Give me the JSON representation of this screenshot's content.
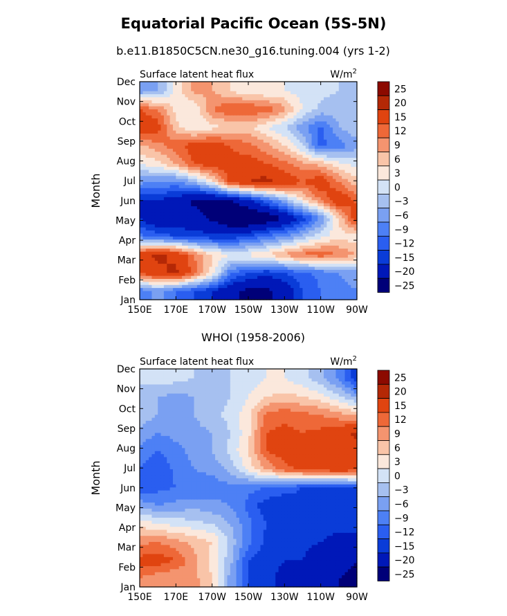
{
  "page": {
    "title": "Equatorial Pacific Ocean (5S-5N)"
  },
  "chart_data": [
    {
      "type": "heatmap",
      "subtitle": "b.e11.B1850C5CN.ne30_g16.tuning.004 (yrs 1-2)",
      "panel_label": "Surface latent heat flux",
      "units_label": "W/m",
      "units_exponent": "2",
      "xlabel": "",
      "ylabel": "Month",
      "x_ticks": [
        "150E",
        "170E",
        "170W",
        "150W",
        "130W",
        "110W",
        "90W"
      ],
      "y_ticks": [
        "Jan",
        "Feb",
        "Mar",
        "Apr",
        "May",
        "Jun",
        "Jul",
        "Aug",
        "Sep",
        "Oct",
        "Nov",
        "Dec"
      ],
      "colorbar_levels": [
        "25",
        "20",
        "15",
        "12",
        "9",
        "6",
        "3",
        "0",
        "−3",
        "−6",
        "−9",
        "−12",
        "−15",
        "−20",
        "−25"
      ],
      "grid": [
        [
          -9,
          -5,
          -9,
          -12,
          -15,
          -19,
          -21,
          -21,
          -18,
          -12,
          -9,
          -7,
          -6
        ],
        [
          16,
          19,
          21,
          14,
          5,
          -8,
          -12,
          -14,
          -12,
          -10,
          -8,
          -6,
          -5
        ],
        [
          18,
          21,
          19,
          12,
          6,
          3,
          4,
          6,
          10,
          13,
          14,
          12,
          9
        ],
        [
          -8,
          -10,
          -12,
          -13,
          -14,
          -14,
          -12,
          -9,
          -6,
          -2,
          2,
          5,
          4
        ],
        [
          -15,
          -20,
          -19,
          -18,
          -21,
          -25,
          -26,
          -24,
          -20,
          -14,
          -6,
          6,
          18
        ],
        [
          -15,
          -15,
          -17,
          -21,
          -22,
          -20,
          -16,
          -10,
          -3,
          5,
          12,
          19,
          14
        ],
        [
          -5,
          -6,
          -7,
          -3,
          4,
          16,
          20,
          22,
          18,
          15,
          18,
          12,
          7
        ],
        [
          3,
          5,
          9,
          15,
          18,
          16,
          17,
          15,
          13,
          10,
          8,
          4,
          2
        ],
        [
          8,
          11,
          14,
          17,
          18,
          15,
          13,
          10,
          6,
          0,
          -10,
          -8,
          -4
        ],
        [
          20,
          17,
          7,
          3,
          5,
          6,
          7,
          3,
          0,
          -5,
          -10,
          -3,
          -1
        ],
        [
          15,
          12,
          5,
          3,
          12,
          15,
          15,
          14,
          10,
          3,
          -1,
          -2,
          -2
        ],
        [
          -5,
          -3,
          4,
          10,
          9,
          6,
          4,
          3,
          3,
          2,
          1,
          0,
          -3
        ]
      ]
    },
    {
      "type": "heatmap",
      "subtitle": "WHOI (1958-2006)",
      "panel_label": "Surface latent heat flux",
      "units_label": "W/m",
      "units_exponent": "2",
      "xlabel": "",
      "ylabel": "Month",
      "x_ticks": [
        "150E",
        "170E",
        "170W",
        "150W",
        "130W",
        "110W",
        "90W"
      ],
      "y_ticks": [
        "Jan",
        "Feb",
        "Mar",
        "Apr",
        "May",
        "Jun",
        "Jul",
        "Aug",
        "Sep",
        "Oct",
        "Nov",
        "Dec"
      ],
      "colorbar_levels": [
        "25",
        "20",
        "15",
        "12",
        "9",
        "6",
        "3",
        "0",
        "−3",
        "−6",
        "−9",
        "−12",
        "−15",
        "−20",
        "−25"
      ],
      "grid": [
        [
          12,
          10,
          9,
          10,
          6,
          -4,
          -12,
          -14,
          -16,
          -18,
          -20,
          -20,
          -22
        ],
        [
          16,
          17,
          15,
          10,
          5,
          -2,
          -12,
          -14,
          -15,
          -15,
          -18,
          -18,
          -20
        ],
        [
          11,
          12,
          10,
          8,
          6,
          -1,
          -8,
          -13,
          -14,
          -14,
          -15,
          -16,
          -16
        ],
        [
          5,
          3,
          2,
          1,
          0,
          -3,
          -8,
          -12,
          -13,
          -13,
          -14,
          -14,
          -14
        ],
        [
          -4,
          -6,
          -5,
          -4,
          -5,
          -6,
          -10,
          -14,
          -15,
          -14,
          -15,
          -15,
          -15
        ],
        [
          -11,
          -10,
          -9,
          -9,
          -8,
          -7,
          -8,
          -9,
          -10,
          -12,
          -13,
          -13,
          -12
        ],
        [
          -9,
          -12,
          -8,
          -6,
          -5,
          -2,
          4,
          9,
          14,
          16,
          17,
          18,
          17
        ],
        [
          -7,
          -9,
          -7,
          -5,
          -3,
          1,
          6,
          15,
          17,
          16,
          16,
          18,
          18
        ],
        [
          -4,
          -6,
          -5,
          -4,
          -3,
          0,
          5,
          15,
          16,
          15,
          16,
          18,
          21
        ],
        [
          -1,
          -3,
          -5,
          -3,
          -1,
          1,
          5,
          13,
          14,
          13,
          12,
          10,
          8
        ],
        [
          -3,
          -3,
          -4,
          -3,
          -2,
          0,
          3,
          6,
          7,
          6,
          4,
          1,
          -4
        ],
        [
          1,
          2,
          1,
          0,
          -1,
          0,
          1,
          3,
          3,
          1,
          -2,
          -7,
          -14
        ]
      ]
    }
  ],
  "colors": {
    "palette": [
      "#000078",
      "#0018b8",
      "#0a3cd8",
      "#2a5ef0",
      "#4d80f5",
      "#7aa0f2",
      "#a6c0f0",
      "#d3e2f6",
      "#fbe8dc",
      "#f9c4a8",
      "#f4946f",
      "#ee6838",
      "#e04410",
      "#b42806",
      "#8c0a00"
    ]
  }
}
